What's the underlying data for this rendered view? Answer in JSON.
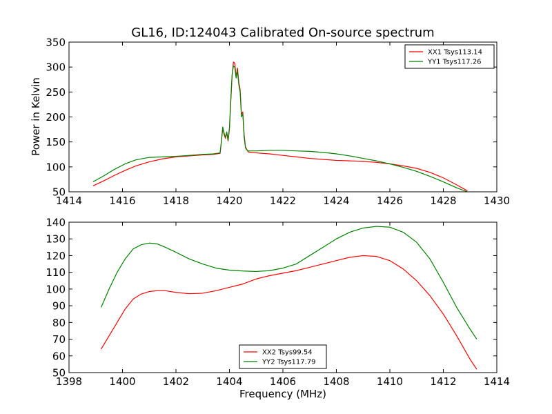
{
  "chart_data": [
    {
      "type": "line",
      "title": "GL16, ID:124043 Calibrated On-source spectrum",
      "xlabel": "",
      "ylabel": "Power in Kelvin",
      "xlim": [
        1414,
        1430
      ],
      "ylim": [
        50,
        350
      ],
      "xticks": [
        1414,
        1416,
        1418,
        1420,
        1422,
        1424,
        1426,
        1428,
        1430
      ],
      "yticks": [
        50,
        100,
        150,
        200,
        250,
        300,
        350
      ],
      "legend_position": "top-right",
      "grid": false,
      "series": [
        {
          "name": "XX1 Tsys113.14",
          "color": "#ff0000",
          "x": [
            1414.9,
            1415.3,
            1415.7,
            1416.1,
            1416.5,
            1417.0,
            1417.5,
            1418.0,
            1418.5,
            1419.0,
            1419.4,
            1419.65,
            1419.7,
            1419.75,
            1419.8,
            1419.85,
            1419.9,
            1419.95,
            1420.0,
            1420.05,
            1420.1,
            1420.15,
            1420.2,
            1420.25,
            1420.3,
            1420.35,
            1420.4,
            1420.45,
            1420.5,
            1420.55,
            1420.6,
            1420.65,
            1420.7,
            1420.8,
            1421.0,
            1421.5,
            1422.0,
            1422.5,
            1423.0,
            1423.5,
            1424.0,
            1424.5,
            1425.0,
            1425.5,
            1426.0,
            1426.5,
            1427.0,
            1427.5,
            1428.0,
            1428.5,
            1428.9
          ],
          "values": [
            62,
            72,
            83,
            93,
            102,
            110,
            116,
            120,
            122,
            124,
            125,
            127,
            150,
            178,
            165,
            157,
            168,
            152,
            175,
            230,
            282,
            310,
            308,
            280,
            298,
            270,
            255,
            205,
            210,
            165,
            140,
            135,
            130,
            129,
            128,
            126,
            123,
            120,
            117,
            115,
            113,
            112,
            111,
            109,
            106,
            102,
            97,
            89,
            78,
            64,
            52
          ]
        },
        {
          "name": "YY1 Tsys117.26",
          "color": "#008000",
          "x": [
            1414.9,
            1415.3,
            1415.7,
            1416.1,
            1416.5,
            1417.0,
            1417.5,
            1418.0,
            1418.5,
            1419.0,
            1419.4,
            1419.65,
            1419.7,
            1419.75,
            1419.8,
            1419.85,
            1419.9,
            1419.95,
            1420.0,
            1420.05,
            1420.1,
            1420.15,
            1420.2,
            1420.25,
            1420.3,
            1420.35,
            1420.4,
            1420.45,
            1420.5,
            1420.55,
            1420.6,
            1420.65,
            1420.7,
            1420.8,
            1421.0,
            1421.5,
            1422.0,
            1422.5,
            1423.0,
            1423.5,
            1424.0,
            1424.5,
            1425.0,
            1425.5,
            1426.0,
            1426.5,
            1427.0,
            1427.5,
            1428.0,
            1428.5,
            1428.9
          ],
          "values": [
            70,
            82,
            95,
            106,
            114,
            119,
            120,
            121,
            123,
            125,
            126,
            128,
            152,
            180,
            168,
            159,
            170,
            154,
            178,
            235,
            285,
            302,
            300,
            278,
            292,
            265,
            250,
            200,
            206,
            160,
            138,
            134,
            132,
            132,
            132,
            133,
            133,
            132,
            131,
            129,
            126,
            122,
            117,
            112,
            106,
            99,
            91,
            81,
            70,
            58,
            50
          ]
        }
      ]
    },
    {
      "type": "line",
      "title": "",
      "xlabel": "Frequency (MHz)",
      "ylabel": "",
      "xlim": [
        1398,
        1414
      ],
      "ylim": [
        50,
        140
      ],
      "xticks": [
        1398,
        1400,
        1402,
        1404,
        1406,
        1408,
        1410,
        1412,
        1414
      ],
      "yticks": [
        50,
        60,
        70,
        80,
        90,
        100,
        110,
        120,
        130,
        140
      ],
      "legend_position": "bottom-center",
      "grid": false,
      "series": [
        {
          "name": "XX2 Tsys99.54",
          "color": "#ff0000",
          "x": [
            1399.2,
            1399.5,
            1399.8,
            1400.1,
            1400.4,
            1400.7,
            1401.0,
            1401.3,
            1401.6,
            1402.0,
            1402.5,
            1403.0,
            1403.5,
            1404.0,
            1404.5,
            1405.0,
            1405.5,
            1406.0,
            1406.5,
            1407.0,
            1407.5,
            1408.0,
            1408.5,
            1409.0,
            1409.5,
            1410.0,
            1410.5,
            1411.0,
            1411.5,
            1412.0,
            1412.5,
            1413.0,
            1413.25
          ],
          "values": [
            64,
            72,
            80,
            88,
            94,
            97,
            98.5,
            99,
            99,
            98,
            97.2,
            97.5,
            99,
            101,
            103,
            106,
            108,
            109.5,
            111,
            113,
            115,
            117,
            119,
            120,
            119.5,
            117,
            112,
            105,
            96,
            85,
            72,
            58,
            52
          ]
        },
        {
          "name": "YY2 Tsys117.79",
          "color": "#008000",
          "x": [
            1399.2,
            1399.5,
            1399.8,
            1400.1,
            1400.4,
            1400.7,
            1401.0,
            1401.3,
            1401.6,
            1402.0,
            1402.5,
            1403.0,
            1403.5,
            1404.0,
            1404.5,
            1405.0,
            1405.5,
            1406.0,
            1406.5,
            1407.0,
            1407.5,
            1408.0,
            1408.5,
            1409.0,
            1409.5,
            1410.0,
            1410.5,
            1411.0,
            1411.5,
            1412.0,
            1412.5,
            1413.0,
            1413.25
          ],
          "values": [
            89,
            100,
            110,
            118,
            124,
            126.5,
            127.5,
            127,
            125,
            122,
            118,
            115,
            112.5,
            111.3,
            110.8,
            110.5,
            111,
            112.5,
            115,
            120,
            125,
            130,
            134,
            136.5,
            137.5,
            137,
            134,
            128,
            118,
            104,
            89,
            76,
            70
          ]
        }
      ]
    }
  ]
}
